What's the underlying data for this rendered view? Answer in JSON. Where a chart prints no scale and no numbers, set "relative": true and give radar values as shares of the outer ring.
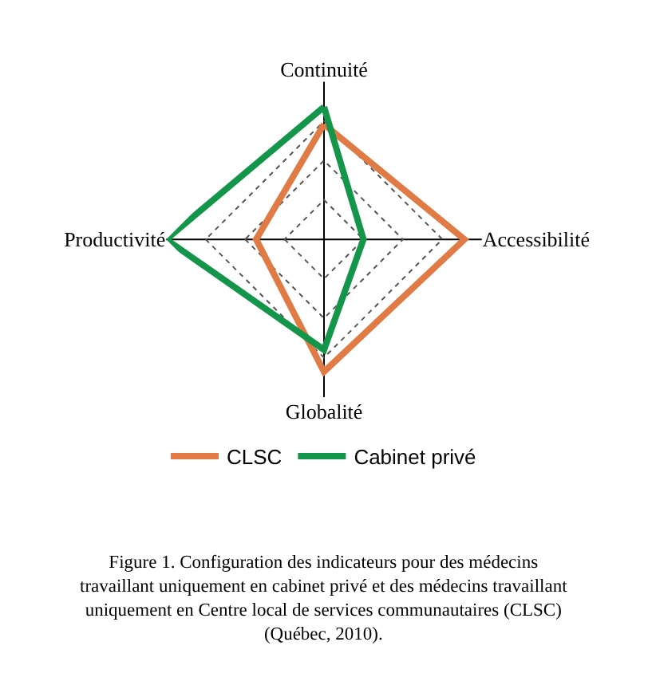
{
  "chart_data": {
    "type": "radar",
    "relative": true,
    "categories": [
      "Continuité",
      "Accessibilité",
      "Globalité",
      "Productivité"
    ],
    "series": [
      {
        "name": "CLSC",
        "color": "#e07b45",
        "values": [
          0.73,
          0.89,
          0.84,
          0.43
        ]
      },
      {
        "name": "Cabinet privé",
        "color": "#14964a",
        "values": [
          0.84,
          0.25,
          0.7,
          1.0
        ]
      }
    ],
    "grid": true,
    "legend": "bottom",
    "marker": "none",
    "line_style": "solid",
    "annotations": [
      "Figure 1. Configuration des indicateurs pour des médecins travaillant uniquement en cabinet privé et des médecins travaillant uniquement en Centre local de services communautaires (CLSC) (Québec, 2010)."
    ]
  }
}
